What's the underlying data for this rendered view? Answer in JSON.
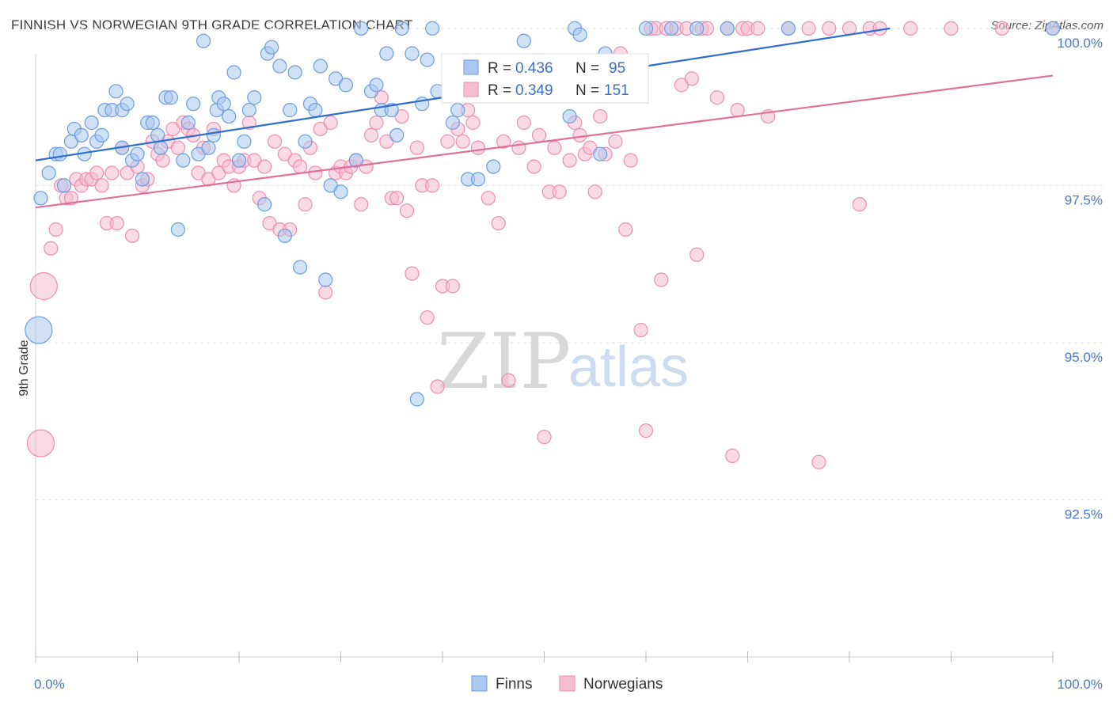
{
  "title": "FINNISH VS NORWEGIAN 9TH GRADE CORRELATION CHART",
  "source": "Source: ZipAtlas.com",
  "watermark": {
    "zip": "ZIP",
    "atlas": "atlas"
  },
  "legend_top": {
    "rows": [
      {
        "r_label": "R = ",
        "r_value": "0.436",
        "n_label": "N = ",
        "n_value": "95"
      },
      {
        "r_label": "R = ",
        "r_value": "0.349",
        "n_label": "N = ",
        "n_value": "151"
      }
    ]
  },
  "legend_bottom": {
    "items": [
      "Finns",
      "Norwegians"
    ]
  },
  "colors": {
    "finns_fill": "#a9c8ef",
    "finns_stroke": "#6a9ee0",
    "finns_line": "#2f6dd0",
    "norw_fill": "#f6bcd0",
    "norw_stroke": "#ec8fb0",
    "norw_line": "#e0709a",
    "tick_label": "#4a78c8",
    "grid": "#e3e3e3"
  },
  "chart_data": {
    "type": "scatter",
    "xlabel": "",
    "ylabel": "9th Grade",
    "x_tick_labels": [
      "0.0%",
      "100.0%"
    ],
    "y_tick_labels": [
      "100.0%",
      "97.5%",
      "95.0%",
      "92.5%"
    ],
    "y_ticks": [
      100.0,
      97.5,
      95.0,
      92.5
    ],
    "xlim": [
      0,
      100
    ],
    "ylim": [
      90.0,
      100.2
    ],
    "grid": true,
    "series": [
      {
        "name": "Finns",
        "trend": [
          [
            0,
            97.9
          ],
          [
            84,
            100.0
          ]
        ],
        "points": [
          [
            0.3,
            95.2,
            1
          ],
          [
            0.5,
            97.3,
            0
          ],
          [
            1.3,
            97.7,
            0
          ],
          [
            2,
            98,
            0
          ],
          [
            2.4,
            98,
            0
          ],
          [
            2.8,
            97.5,
            0
          ],
          [
            3.5,
            98.2,
            0
          ],
          [
            3.8,
            98.4,
            0
          ],
          [
            4.5,
            98.3,
            0
          ],
          [
            4.8,
            98,
            0
          ],
          [
            5.5,
            98.5,
            0
          ],
          [
            6,
            98.2,
            0
          ],
          [
            6.5,
            98.3,
            0
          ],
          [
            6.8,
            98.7,
            0
          ],
          [
            7.5,
            98.7,
            0
          ],
          [
            7.9,
            99,
            0
          ],
          [
            8.5,
            98.7,
            0
          ],
          [
            8.5,
            98.1,
            0
          ],
          [
            9,
            98.8,
            0
          ],
          [
            9.5,
            97.9,
            0
          ],
          [
            10,
            98,
            0
          ],
          [
            10.5,
            97.6,
            0
          ],
          [
            11,
            98.5,
            0
          ],
          [
            11.5,
            98.5,
            0
          ],
          [
            12,
            98.3,
            0
          ],
          [
            12.3,
            98.1,
            0
          ],
          [
            12.8,
            98.9,
            0
          ],
          [
            13.3,
            98.9,
            0
          ],
          [
            14,
            96.8,
            0
          ],
          [
            14.5,
            97.9,
            0
          ],
          [
            15,
            98.5,
            0
          ],
          [
            15.5,
            98.8,
            0
          ],
          [
            16,
            98,
            0
          ],
          [
            16.5,
            99.8,
            0
          ],
          [
            17,
            98.1,
            0
          ],
          [
            17.5,
            98.3,
            0
          ],
          [
            17.8,
            98.7,
            0
          ],
          [
            18,
            98.9,
            0
          ],
          [
            18.5,
            98.8,
            0
          ],
          [
            19,
            98.6,
            0
          ],
          [
            19.5,
            99.3,
            0
          ],
          [
            20,
            97.9,
            0
          ],
          [
            20.5,
            98.2,
            0
          ],
          [
            21,
            98.7,
            0
          ],
          [
            21.5,
            98.9,
            0
          ],
          [
            22.5,
            97.2,
            0
          ],
          [
            22.8,
            99.6,
            0
          ],
          [
            23.2,
            99.7,
            0
          ],
          [
            24,
            99.4,
            0
          ],
          [
            24.5,
            96.7,
            0
          ],
          [
            25,
            98.7,
            0
          ],
          [
            25.5,
            99.3,
            0
          ],
          [
            26,
            96.2,
            0
          ],
          [
            26.5,
            98.2,
            0
          ],
          [
            27,
            98.8,
            0
          ],
          [
            27.5,
            98.7,
            0
          ],
          [
            28,
            99.4,
            0
          ],
          [
            28.5,
            96,
            0
          ],
          [
            29,
            97.5,
            0
          ],
          [
            29.5,
            99.2,
            0
          ],
          [
            30,
            97.4,
            0
          ],
          [
            30.5,
            99.1,
            0
          ],
          [
            31.5,
            97.9,
            0
          ],
          [
            32,
            100,
            0
          ],
          [
            33,
            99,
            0
          ],
          [
            33.5,
            99.1,
            0
          ],
          [
            34,
            98.7,
            0
          ],
          [
            34.5,
            99.6,
            0
          ],
          [
            35,
            98.7,
            0
          ],
          [
            35.5,
            98.3,
            0
          ],
          [
            36,
            100,
            0
          ],
          [
            37,
            99.6,
            0
          ],
          [
            37.5,
            94.1,
            0
          ],
          [
            38,
            98.8,
            0
          ],
          [
            38.5,
            99.5,
            0
          ],
          [
            39,
            100,
            0
          ],
          [
            39.5,
            99,
            0
          ],
          [
            41,
            98.5,
            0
          ],
          [
            41.5,
            98.7,
            0
          ],
          [
            42.5,
            97.6,
            0
          ],
          [
            43.5,
            97.6,
            0
          ],
          [
            44,
            99,
            0
          ],
          [
            45,
            97.8,
            0
          ],
          [
            48,
            99.8,
            0
          ],
          [
            52.5,
            98.6,
            0
          ],
          [
            53,
            100,
            0
          ],
          [
            53.5,
            99.9,
            0
          ],
          [
            55.5,
            98,
            0
          ],
          [
            56,
            99.6,
            0
          ],
          [
            60,
            100,
            0
          ],
          [
            62.5,
            100,
            0
          ],
          [
            65,
            100,
            0
          ],
          [
            68,
            100,
            0
          ],
          [
            74,
            100,
            0
          ],
          [
            100,
            100,
            0
          ]
        ]
      },
      {
        "name": "Norwegians",
        "trend": [
          [
            0,
            97.15
          ],
          [
            100,
            99.25
          ]
        ],
        "points": [
          [
            0.5,
            93.4,
            1
          ],
          [
            0.8,
            95.9,
            1
          ],
          [
            1.5,
            96.5,
            0
          ],
          [
            2,
            96.8,
            0
          ],
          [
            2.5,
            97.5,
            0
          ],
          [
            3,
            97.3,
            0
          ],
          [
            3.5,
            97.3,
            0
          ],
          [
            4,
            97.6,
            0
          ],
          [
            4.5,
            97.5,
            0
          ],
          [
            5,
            97.6,
            0
          ],
          [
            5.5,
            97.6,
            0
          ],
          [
            6,
            97.7,
            0
          ],
          [
            6.5,
            97.5,
            0
          ],
          [
            7,
            96.9,
            0
          ],
          [
            7.5,
            97.7,
            0
          ],
          [
            8,
            96.9,
            0
          ],
          [
            8.5,
            98.1,
            0
          ],
          [
            9,
            97.7,
            0
          ],
          [
            9.5,
            96.7,
            0
          ],
          [
            10,
            97.8,
            0
          ],
          [
            10.5,
            97.5,
            0
          ],
          [
            11,
            97.6,
            0
          ],
          [
            11.5,
            98.2,
            0
          ],
          [
            12,
            98,
            0
          ],
          [
            12.5,
            97.9,
            0
          ],
          [
            13,
            98.2,
            0
          ],
          [
            13.5,
            98.4,
            0
          ],
          [
            14,
            98.1,
            0
          ],
          [
            14.5,
            98.5,
            0
          ],
          [
            15,
            98.4,
            0
          ],
          [
            15.5,
            98.3,
            0
          ],
          [
            16,
            97.7,
            0
          ],
          [
            16.5,
            98.1,
            0
          ],
          [
            17,
            97.6,
            0
          ],
          [
            17.5,
            98.4,
            0
          ],
          [
            18,
            97.7,
            0
          ],
          [
            18.5,
            97.9,
            0
          ],
          [
            19,
            97.8,
            0
          ],
          [
            19.5,
            97.5,
            0
          ],
          [
            20,
            97.8,
            0
          ],
          [
            20.5,
            97.9,
            0
          ],
          [
            21,
            98.5,
            0
          ],
          [
            21.5,
            97.9,
            0
          ],
          [
            22,
            97.3,
            0
          ],
          [
            22.5,
            97.8,
            0
          ],
          [
            23,
            96.9,
            0
          ],
          [
            23.5,
            98.2,
            0
          ],
          [
            24,
            96.8,
            0
          ],
          [
            24.5,
            98,
            0
          ],
          [
            25,
            96.8,
            0
          ],
          [
            25.5,
            97.9,
            0
          ],
          [
            26,
            97.8,
            0
          ],
          [
            26.5,
            97.2,
            0
          ],
          [
            27,
            98.1,
            0
          ],
          [
            27.5,
            97.7,
            0
          ],
          [
            28,
            98.4,
            0
          ],
          [
            28.5,
            95.8,
            0
          ],
          [
            29,
            98.5,
            0
          ],
          [
            29.5,
            97.7,
            0
          ],
          [
            30,
            97.8,
            0
          ],
          [
            30.5,
            97.7,
            0
          ],
          [
            31,
            97.8,
            0
          ],
          [
            31.5,
            97.9,
            0
          ],
          [
            32,
            97.2,
            0
          ],
          [
            32.5,
            97.8,
            0
          ],
          [
            33,
            98.3,
            0
          ],
          [
            33.5,
            98.5,
            0
          ],
          [
            34,
            98.9,
            0
          ],
          [
            34.5,
            98.2,
            0
          ],
          [
            35,
            97.3,
            0
          ],
          [
            35.5,
            97.3,
            0
          ],
          [
            36,
            98.6,
            0
          ],
          [
            36.5,
            97.1,
            0
          ],
          [
            37,
            96.1,
            0
          ],
          [
            37.5,
            98.1,
            0
          ],
          [
            38,
            97.5,
            0
          ],
          [
            38.5,
            95.4,
            0
          ],
          [
            39,
            97.5,
            0
          ],
          [
            39.5,
            94.3,
            0
          ],
          [
            40,
            95.9,
            0
          ],
          [
            40.5,
            98.2,
            0
          ],
          [
            41,
            95.9,
            0
          ],
          [
            41.5,
            98.4,
            0
          ],
          [
            42,
            98.2,
            0
          ],
          [
            42.5,
            98.7,
            0
          ],
          [
            43,
            98.5,
            0
          ],
          [
            43.5,
            98.1,
            0
          ],
          [
            44,
            99,
            0
          ],
          [
            44.5,
            97.3,
            0
          ],
          [
            45,
            99.2,
            0
          ],
          [
            45.5,
            96.9,
            0
          ],
          [
            46,
            98.2,
            0
          ],
          [
            46.5,
            94.4,
            0
          ],
          [
            47,
            99.3,
            0
          ],
          [
            47.5,
            98.1,
            0
          ],
          [
            48,
            98.5,
            0
          ],
          [
            48.5,
            99.1,
            0
          ],
          [
            49,
            97.8,
            0
          ],
          [
            49.5,
            98.3,
            0
          ],
          [
            50,
            93.5,
            0
          ],
          [
            50.5,
            97.4,
            0
          ],
          [
            51,
            98.1,
            0
          ],
          [
            51.5,
            97.4,
            0
          ],
          [
            52,
            99.4,
            0
          ],
          [
            52.5,
            97.9,
            0
          ],
          [
            53,
            98.5,
            0
          ],
          [
            53.5,
            98.3,
            0
          ],
          [
            54,
            98,
            0
          ],
          [
            54.5,
            98.1,
            0
          ],
          [
            55,
            97.4,
            0
          ],
          [
            55.5,
            98.6,
            0
          ],
          [
            56,
            98,
            0
          ],
          [
            56.5,
            99,
            0
          ],
          [
            57,
            98.2,
            0
          ],
          [
            57.5,
            99.6,
            0
          ],
          [
            58,
            96.8,
            0
          ],
          [
            58.5,
            97.9,
            0
          ],
          [
            59,
            99,
            0
          ],
          [
            59.5,
            95.2,
            0
          ],
          [
            60,
            93.6,
            0
          ],
          [
            60.5,
            100,
            0
          ],
          [
            61,
            100,
            0
          ],
          [
            61.5,
            96,
            0
          ],
          [
            62,
            100,
            0
          ],
          [
            63,
            100,
            0
          ],
          [
            63.5,
            99.1,
            0
          ],
          [
            64,
            100,
            0
          ],
          [
            64.5,
            99.2,
            0
          ],
          [
            65,
            96.4,
            0
          ],
          [
            65.5,
            100,
            0
          ],
          [
            66,
            100,
            0
          ],
          [
            67,
            98.9,
            0
          ],
          [
            68,
            100,
            0
          ],
          [
            68.5,
            93.2,
            0
          ],
          [
            69,
            98.7,
            0
          ],
          [
            69.5,
            100,
            0
          ],
          [
            70,
            100,
            0
          ],
          [
            71,
            100,
            0
          ],
          [
            72,
            98.6,
            0
          ],
          [
            74,
            100,
            0
          ],
          [
            76,
            100,
            0
          ],
          [
            77,
            93.1,
            0
          ],
          [
            78,
            100,
            0
          ],
          [
            80,
            100,
            0
          ],
          [
            81,
            97.2,
            0
          ],
          [
            82,
            100,
            0
          ],
          [
            83,
            100,
            0
          ],
          [
            86,
            100,
            0
          ],
          [
            90,
            100,
            0
          ],
          [
            95,
            100,
            0
          ],
          [
            100,
            100,
            0
          ]
        ]
      }
    ]
  }
}
